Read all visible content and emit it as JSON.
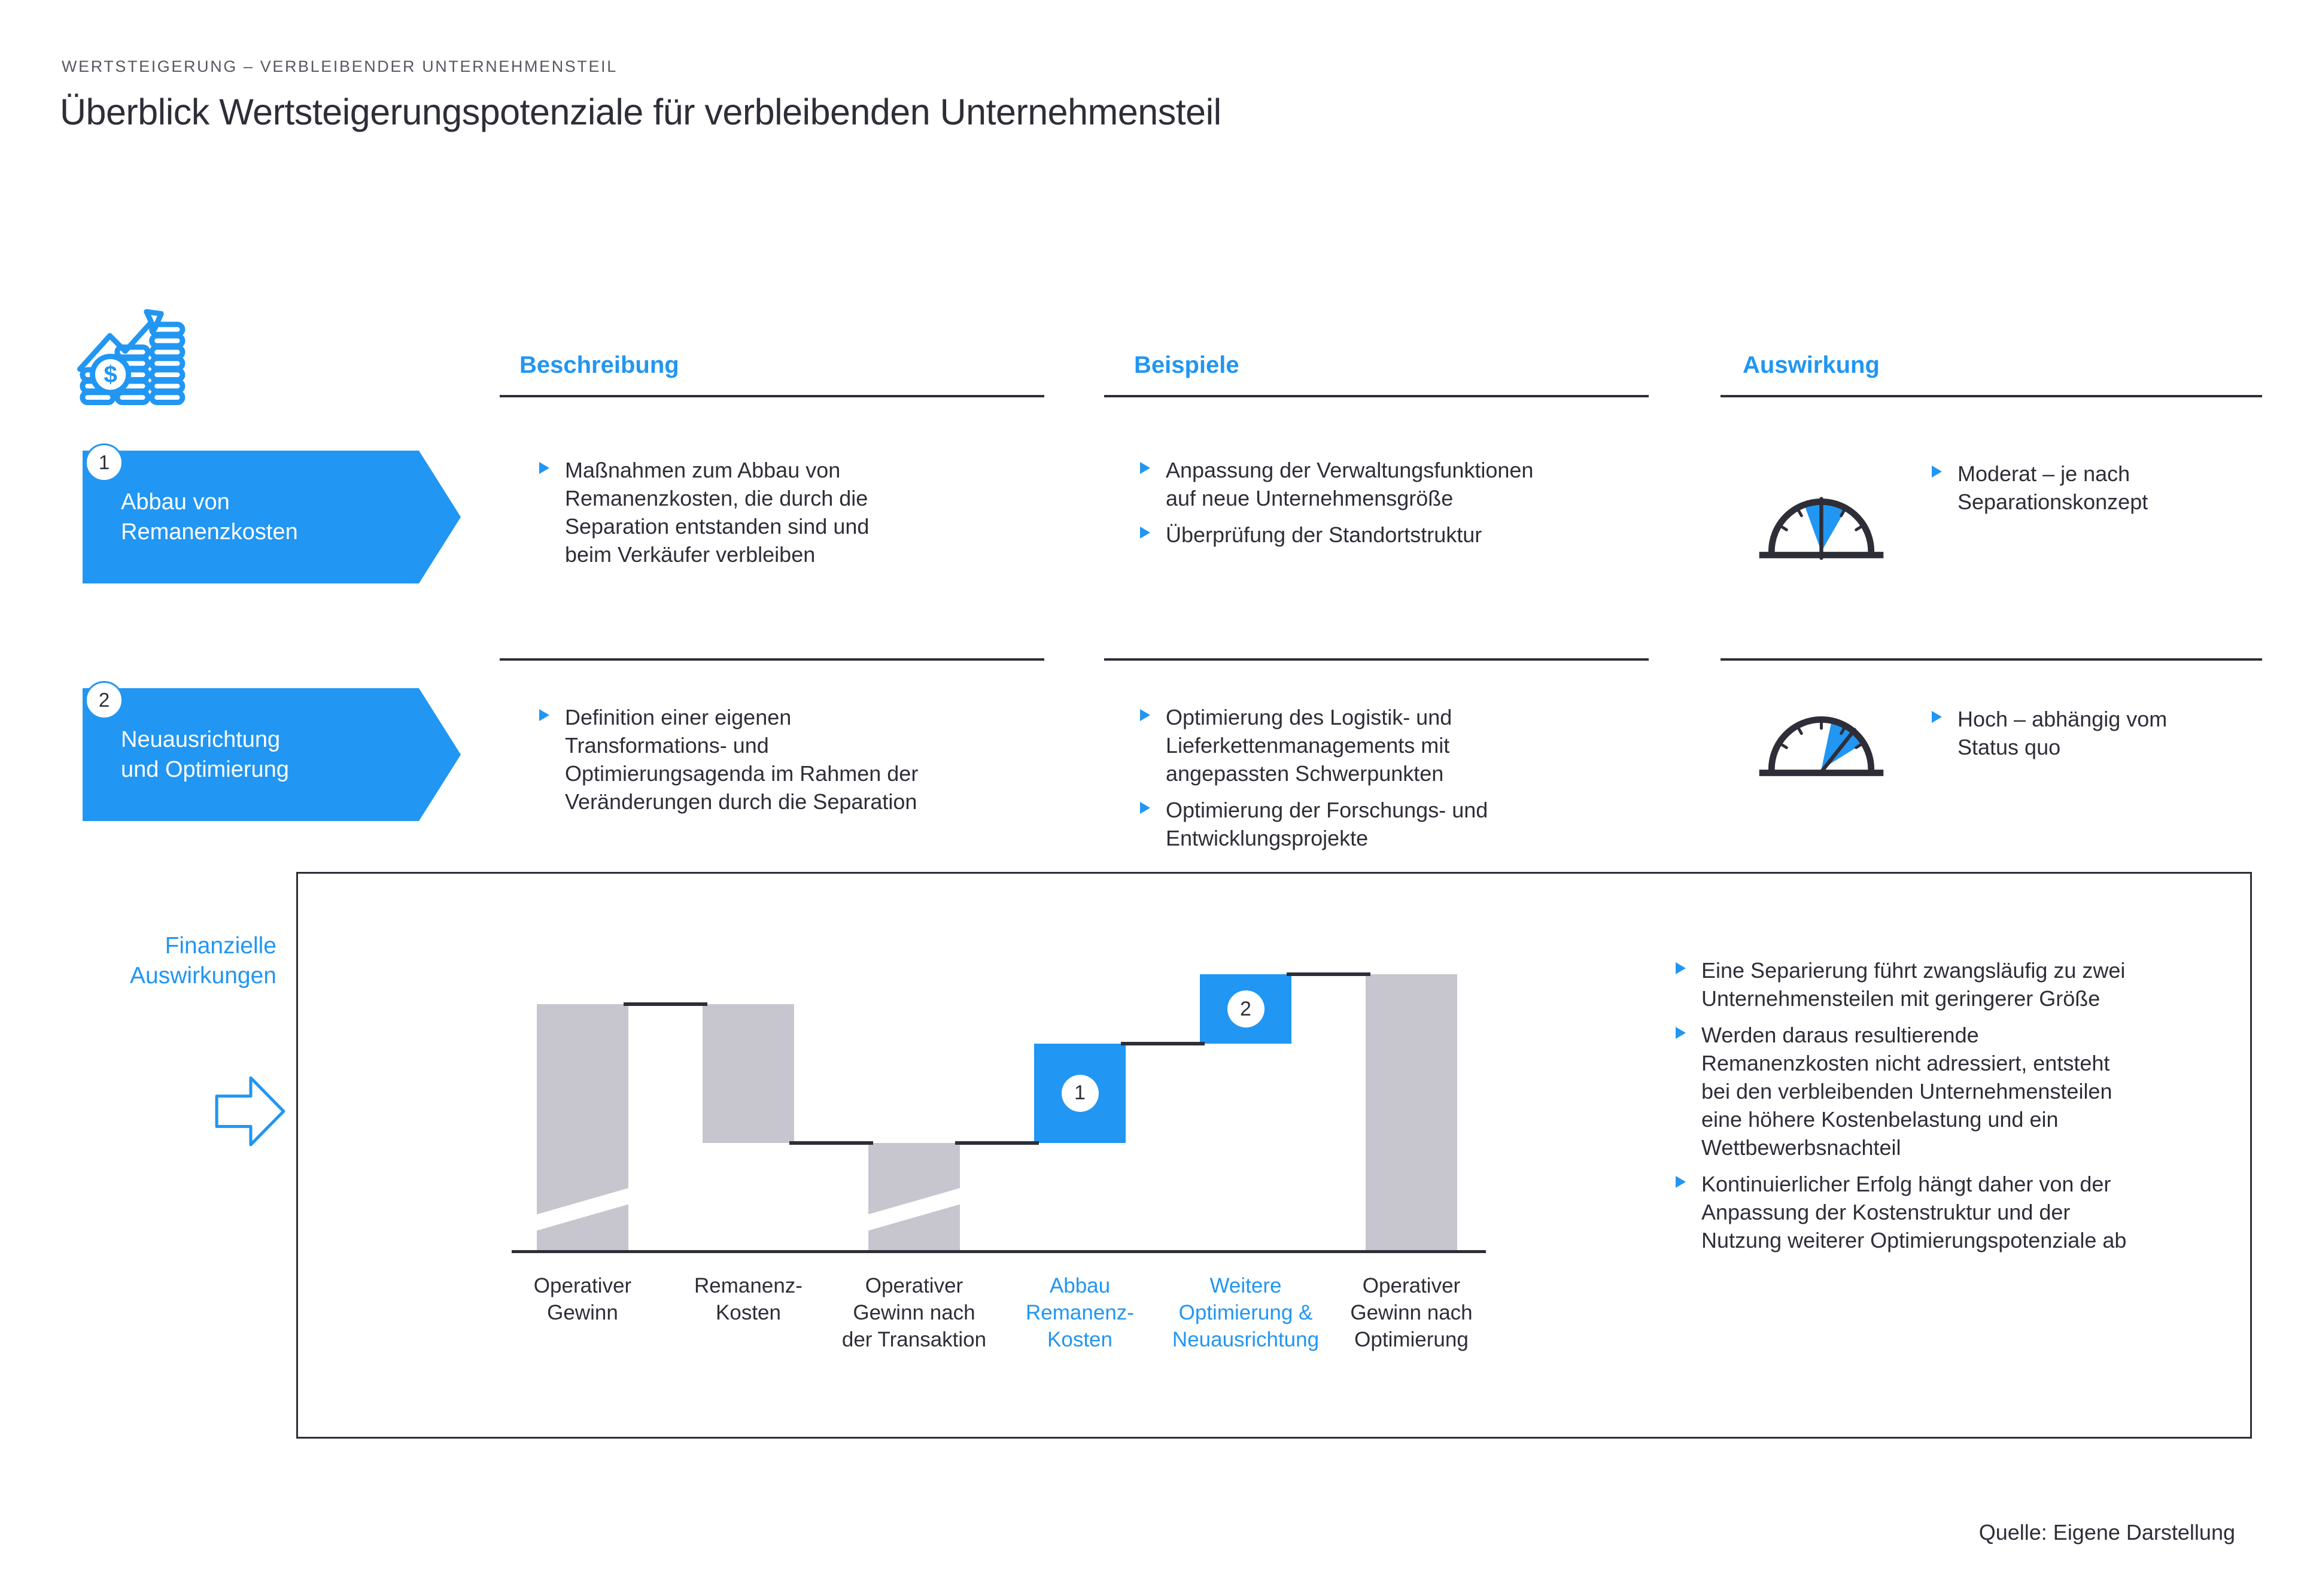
{
  "page": {
    "eyebrow": "WERTSTEIGERUNG – VERBLEIBENDER UNTERNEHMENSTEIL",
    "title": "Überblick Wertsteigerungspotenziale für verbleibenden Unternehmensteil",
    "source": "Quelle: Eigene Darstellung"
  },
  "colors": {
    "accent": "#2196F3",
    "dark": "#2E2E38",
    "gray_bar": "#C7C6CE",
    "eyebrow_gray": "#585862"
  },
  "columns": {
    "beschreibung": "Beschreibung",
    "beispiele": "Beispiele",
    "auswirkung": "Auswirkung"
  },
  "rows": [
    {
      "number": "1",
      "banner": "Abbau von\nRemanenzkosten",
      "beschreibung": [
        "Maßnahmen zum Abbau von\nRemanenzkosten, die durch die\nSeparation entstanden sind und\nbeim Verkäufer verbleiben"
      ],
      "beispiele": [
        "Anpassung der Verwaltungsfunktionen\nauf neue Unternehmensgröße",
        "Überprüfung der Standortstruktur"
      ],
      "auswirkung": "Moderat – je nach\nSeparationskonzept",
      "gauge": "moderate"
    },
    {
      "number": "2",
      "banner": "Neuausrichtung\nund Optimierung",
      "beschreibung": [
        "Definition einer eigenen\nTransformations- und\nOptimierungsagenda im Rahmen der\nVeränderungen durch die Separation"
      ],
      "beispiele": [
        "Optimierung des Logistik- und\nLieferkettenmanagements mit\nangepassten Schwerpunkten",
        "Optimierung der Forschungs- und\nEntwicklungsprojekte"
      ],
      "auswirkung": "Hoch – abhängig vom\nStatus quo",
      "gauge": "high"
    }
  ],
  "financial": {
    "label": "Finanzielle\nAuswirkungen",
    "bullets": [
      "Eine Separierung führt zwangsläufig zu zwei\nUnternehmensteilen mit geringerer Größe",
      "Werden daraus resultierende\nRemanenzkosten nicht adressiert, entsteht\nbei den verbleibenden Unternehmensteilen\neine höhere Kostenbelastung und ein\nWettbewerbsnachteil",
      "Kontinuierlicher Erfolg hängt daher von der\nAnpassung der Kostenstruktur und der\nNutzung weiterer Optimierungspotenziale ab"
    ]
  },
  "chart_data": {
    "type": "bar",
    "subtype": "waterfall",
    "title": "",
    "xlabel": "",
    "ylabel": "",
    "axis_values_shown": false,
    "ymax": 112,
    "note": "Keine Zahlenwerte im Original sichtbar; lo/hi relativ geschätzt, Operativer Gewinn = 100",
    "categories": [
      "Operativer\nGewinn",
      "Remanenz-\nKosten",
      "Operativer\nGewinn nach\nder Transaktion",
      "Abbau\nRemanenz-\nKosten",
      "Weitere\nOptimierung &\nNeuausrichtung",
      "Operativer\nGewinn nach\nOptimierung"
    ],
    "bars": [
      {
        "lo": 0,
        "hi": 100,
        "style": "gray",
        "axis_break": true,
        "badge": "",
        "label_style": "dark"
      },
      {
        "lo": 44,
        "hi": 100,
        "style": "gray",
        "axis_break": false,
        "badge": "",
        "label_style": "dark"
      },
      {
        "lo": 0,
        "hi": 44,
        "style": "gray",
        "axis_break": true,
        "badge": "",
        "label_style": "dark"
      },
      {
        "lo": 44,
        "hi": 84,
        "style": "blue",
        "axis_break": false,
        "badge": "1",
        "label_style": "blue"
      },
      {
        "lo": 84,
        "hi": 112,
        "style": "blue",
        "axis_break": false,
        "badge": "2",
        "label_style": "blue"
      },
      {
        "lo": 0,
        "hi": 112,
        "style": "gray",
        "axis_break": false,
        "badge": "",
        "label_style": "dark"
      }
    ],
    "connectors": [
      {
        "level": 100,
        "gap_after_bar": 0
      },
      {
        "level": 44,
        "gap_after_bar": 1
      },
      {
        "level": 44,
        "gap_after_bar": 2
      },
      {
        "level": 84,
        "gap_after_bar": 3
      },
      {
        "level": 112,
        "gap_after_bar": 4
      }
    ]
  }
}
